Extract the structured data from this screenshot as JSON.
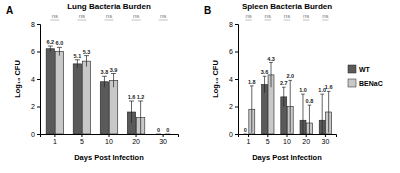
{
  "chart_data": [
    {
      "type": "bar",
      "panel_label": "A",
      "title": "Lung Bacteria Burden",
      "x_label": "Days Post Infection",
      "y_label": "Log₁₀ CFU",
      "categories": [
        "1",
        "5",
        "10",
        "20",
        "30"
      ],
      "ylim": [
        0,
        8
      ],
      "yticks": [
        0,
        2,
        4,
        6,
        8
      ],
      "grid": false,
      "data_labels": true,
      "significance": [
        "ns",
        "ns",
        "ns",
        "ns",
        "ns"
      ],
      "series": [
        {
          "name": "WT",
          "color": "#5a5a5a",
          "values": [
            6.2,
            5.1,
            3.8,
            1.6,
            0
          ],
          "value_labels": [
            "6.2",
            "5.1",
            "3.8",
            "1.6",
            "0"
          ],
          "errors": [
            0.2,
            0.3,
            0.4,
            0.8,
            0
          ]
        },
        {
          "name": "BENaC",
          "color": "#c8c8c8",
          "values": [
            6.0,
            5.3,
            3.9,
            1.2,
            0
          ],
          "value_labels": [
            "6.0",
            "5.3",
            "3.9",
            "1.2",
            "0"
          ],
          "errors": [
            0.3,
            0.4,
            0.5,
            1.2,
            0
          ]
        }
      ]
    },
    {
      "type": "bar",
      "panel_label": "B",
      "title": "Spleen Bacteria Burden",
      "x_label": "Days Post Infection",
      "y_label": "Log₁₀ CFU",
      "categories": [
        "1",
        "5",
        "10",
        "20",
        "30"
      ],
      "ylim": [
        0,
        8
      ],
      "yticks": [
        0,
        2,
        4,
        6,
        8
      ],
      "grid": false,
      "data_labels": true,
      "legend": "right",
      "significance": [
        "ns",
        "ns",
        "ns",
        "ns",
        "ns"
      ],
      "series": [
        {
          "name": "WT",
          "color": "#5a5a5a",
          "values": [
            0,
            3.6,
            2.7,
            1.0,
            1.0
          ],
          "value_labels": [
            "0",
            "3.6",
            "2.7",
            "1.0",
            "1.0"
          ],
          "errors": [
            0,
            0.6,
            0.7,
            1.9,
            1.9
          ]
        },
        {
          "name": "BENaC",
          "color": "#c8c8c8",
          "values": [
            1.8,
            4.3,
            2.0,
            0.8,
            1.6
          ],
          "value_labels": [
            "1.8",
            "4.3",
            "2.0",
            "0.8",
            "1.6"
          ],
          "errors": [
            1.7,
            0.9,
            1.9,
            1.3,
            1.5
          ]
        }
      ]
    }
  ]
}
